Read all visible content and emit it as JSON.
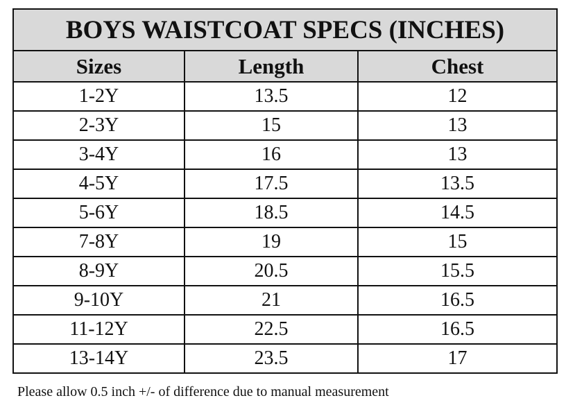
{
  "table": {
    "title": "BOYS WAISTCOAT SPECS (INCHES)",
    "header": [
      "Sizes",
      "Length",
      "Chest"
    ],
    "rows": [
      [
        "1-2Y",
        "13.5",
        "12"
      ],
      [
        "2-3Y",
        "15",
        "13"
      ],
      [
        "3-4Y",
        "16",
        "13"
      ],
      [
        "4-5Y",
        "17.5",
        "13.5"
      ],
      [
        "5-6Y",
        "18.5",
        "14.5"
      ],
      [
        "7-8Y",
        "19",
        "15"
      ],
      [
        "8-9Y",
        "20.5",
        "15.5"
      ],
      [
        "9-10Y",
        "21",
        "16.5"
      ],
      [
        "11-12Y",
        "22.5",
        "16.5"
      ],
      [
        "13-14Y",
        "23.5",
        "17"
      ]
    ]
  },
  "footnote": "Please allow 0.5 inch +/- of difference due to manual measurement"
}
